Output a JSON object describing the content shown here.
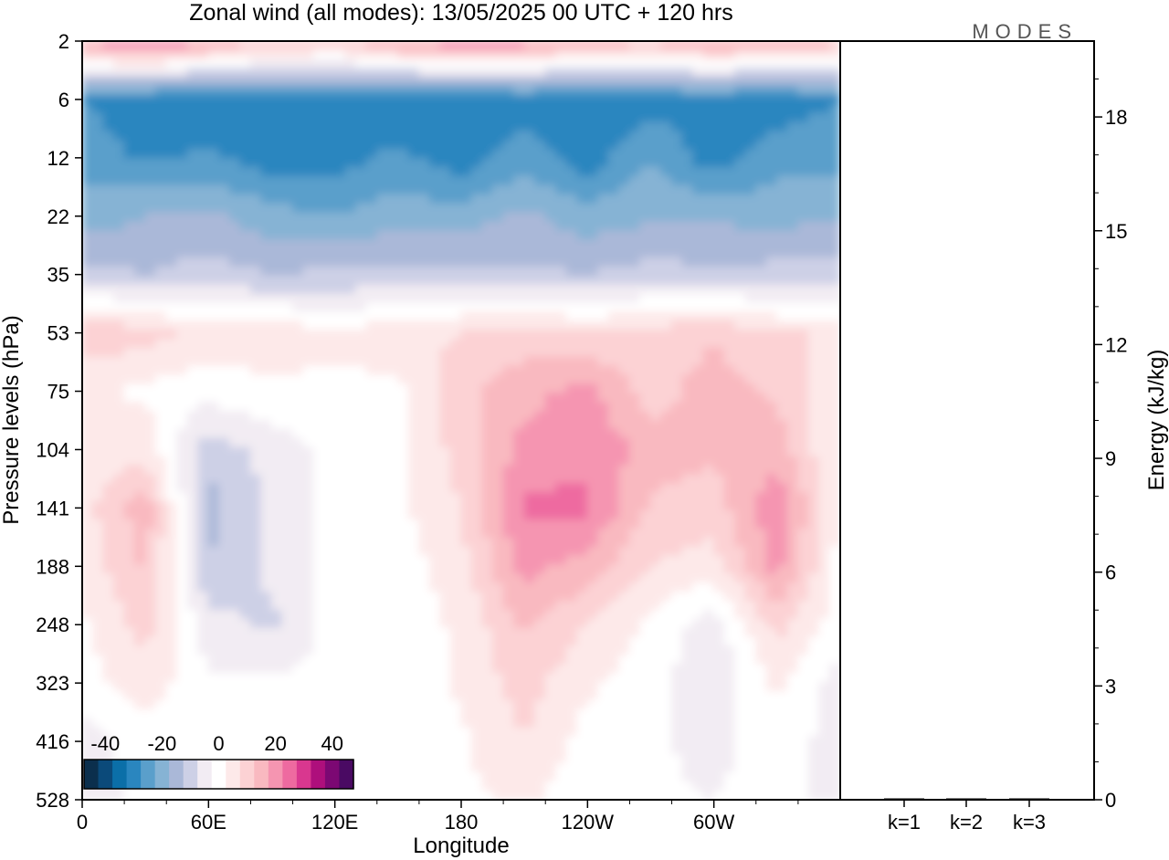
{
  "chart_data": {
    "type": "heatmap",
    "title": "Zonal wind (all modes):  13/05/2025  00 UTC  + 120 hrs",
    "logo": "MODES",
    "left_panel": {
      "xlabel": "Longitude",
      "ylabel": "Pressure levels (hPa)",
      "x_ticks": [
        "0",
        "60E",
        "120E",
        "180",
        "120W",
        "60W"
      ],
      "y_ticks": [
        "2",
        "6",
        "12",
        "22",
        "35",
        "53",
        "75",
        "104",
        "141",
        "188",
        "248",
        "323",
        "416",
        "528"
      ],
      "colorbar": {
        "tick_labels": [
          "-40",
          "-20",
          "0",
          "20",
          "40"
        ],
        "levels": [
          -45,
          -40,
          -35,
          -30,
          -25,
          -20,
          -15,
          -10,
          -5,
          0,
          5,
          10,
          15,
          20,
          25,
          30,
          35,
          40,
          45
        ],
        "colors": [
          "#0b2f4d",
          "#0b4a7a",
          "#0b6fa8",
          "#2a86bf",
          "#5a9fcb",
          "#86b3d4",
          "#aab8d8",
          "#cdd0e6",
          "#f2ecf3",
          "#ffffff",
          "#fde9e9",
          "#fcd2d4",
          "#f9b9c0",
          "#f595b1",
          "#ee6aa0",
          "#d9378f",
          "#ae0f7c",
          "#7c0873",
          "#4a0a63"
        ]
      },
      "zonal_wind_field": {
        "units": "m/s",
        "longitudes": [
          0,
          30,
          60,
          90,
          120,
          150,
          180,
          210,
          240,
          270,
          300,
          330,
          360
        ],
        "levels_hPa": [
          2,
          6,
          12,
          22,
          35,
          53,
          75,
          104,
          141,
          188,
          248,
          323,
          416,
          528
        ],
        "values": [
          [
            22,
            28,
            22,
            16,
            14,
            22,
            25,
            24,
            20,
            18,
            22,
            20,
            18
          ],
          [
            -25,
            -28,
            -30,
            -27,
            -27,
            -28,
            -30,
            -27,
            -30,
            -27,
            -27,
            -28,
            -25
          ],
          [
            -22,
            -26,
            -24,
            -28,
            -27,
            -24,
            -28,
            -22,
            -28,
            -20,
            -28,
            -22,
            -22
          ],
          [
            -18,
            -15,
            -14,
            -18,
            -20,
            -17,
            -18,
            -14,
            -18,
            -16,
            -16,
            -17,
            -15
          ],
          [
            -8,
            -10,
            -8,
            -10,
            -9,
            -9,
            -8,
            -9,
            -10,
            -8,
            -9,
            -8,
            -8
          ],
          [
            14,
            12,
            8,
            8,
            6,
            8,
            10,
            12,
            10,
            12,
            14,
            10,
            10
          ],
          [
            6,
            4,
            2,
            4,
            4,
            4,
            14,
            18,
            22,
            12,
            18,
            14,
            6
          ],
          [
            6,
            8,
            -8,
            -3,
            2,
            4,
            12,
            22,
            24,
            18,
            16,
            18,
            4
          ],
          [
            8,
            18,
            -12,
            -4,
            2,
            4,
            10,
            26,
            26,
            14,
            12,
            24,
            4
          ],
          [
            6,
            16,
            -10,
            -4,
            2,
            2,
            8,
            22,
            18,
            10,
            8,
            22,
            3
          ],
          [
            4,
            12,
            -3,
            -6,
            2,
            2,
            6,
            16,
            10,
            4,
            -3,
            12,
            2
          ],
          [
            3,
            8,
            1,
            1,
            1,
            1,
            6,
            12,
            6,
            2,
            -4,
            6,
            -2
          ],
          [
            -2,
            2,
            1,
            1,
            1,
            1,
            4,
            10,
            3,
            1,
            -2,
            4,
            -3
          ],
          [
            -2,
            1,
            1,
            1,
            1,
            1,
            4,
            6,
            2,
            1,
            0,
            2,
            -3
          ]
        ]
      }
    },
    "right_panel": {
      "type": "bar",
      "ylabel": "Energy (kJ/kg)",
      "categories": [
        "k=1",
        "k=2",
        "k=3"
      ],
      "values": [
        0.02,
        0.02,
        0.02
      ],
      "y_ticks": [
        "0",
        "3",
        "6",
        "9",
        "12",
        "15",
        "18"
      ],
      "ylim": [
        0,
        20
      ]
    }
  }
}
